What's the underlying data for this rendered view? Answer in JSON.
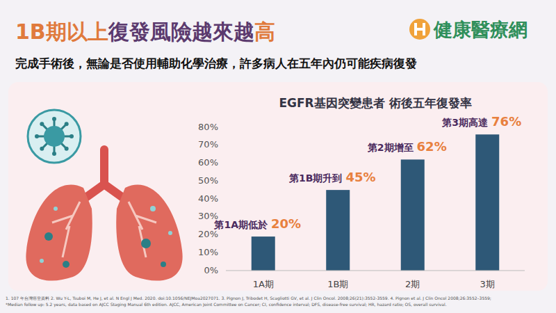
{
  "header": {
    "title_parts": [
      "1B期以上",
      "復發風險越來越",
      "高"
    ],
    "subtitle": "完成手術後，無論是否使用輔助化學治療，許多病人在五年內仍可能疾病復發",
    "logo": "健康醫療網"
  },
  "chart_data": {
    "type": "bar",
    "title": "EGFR基因突變患者 術後五年復發率",
    "categories": [
      "1A期",
      "1B期",
      "2期",
      "3期"
    ],
    "values": [
      19,
      45,
      62,
      76
    ],
    "color": "#2e5877",
    "ylim": [
      0,
      80
    ],
    "yticks": [
      {
        "value": 0,
        "label": "0%"
      },
      {
        "value": 10,
        "label": "10%"
      },
      {
        "value": 20,
        "label": "20%"
      },
      {
        "value": 30,
        "label": "30%"
      },
      {
        "value": 40,
        "label": "40%"
      },
      {
        "value": 50,
        "label": "50%"
      },
      {
        "value": 60,
        "label": "60%"
      },
      {
        "value": 70,
        "label": "70%"
      },
      {
        "value": 80,
        "label": "80%"
      }
    ],
    "grid": false,
    "data_labels": false,
    "annotations": [
      {
        "text": "第1A期低於",
        "label": "20%"
      },
      {
        "text": "第1B期升到",
        "label": "45%"
      },
      {
        "text": "第2期增至",
        "label": "62%"
      },
      {
        "text": "第3期高達",
        "label": "76%"
      }
    ]
  },
  "footnotes": [
    "1. 107 年台灣癌登資料 2. Wu Y-L, Tsuboi M, He J, et al. N Engl J Med. 2020. doi:10.1056/NEJMoa2027071. 3. Pignon J, Tribodet H, Scagliotti GV, et al. J Clin Oncol. 2008;26(21):3552-3559. 4. Pignon et al. J Clin Oncol 2008;26:3552–3559;",
    "*Median follow up: 5.2 years, data based on AJCC Staging Manual 6th edition. AJCC, American Joint Committee on Cancer; CI, confidence interval; DFS, disease-free survival; HR, hazard ratio; OS, overall survival."
  ]
}
